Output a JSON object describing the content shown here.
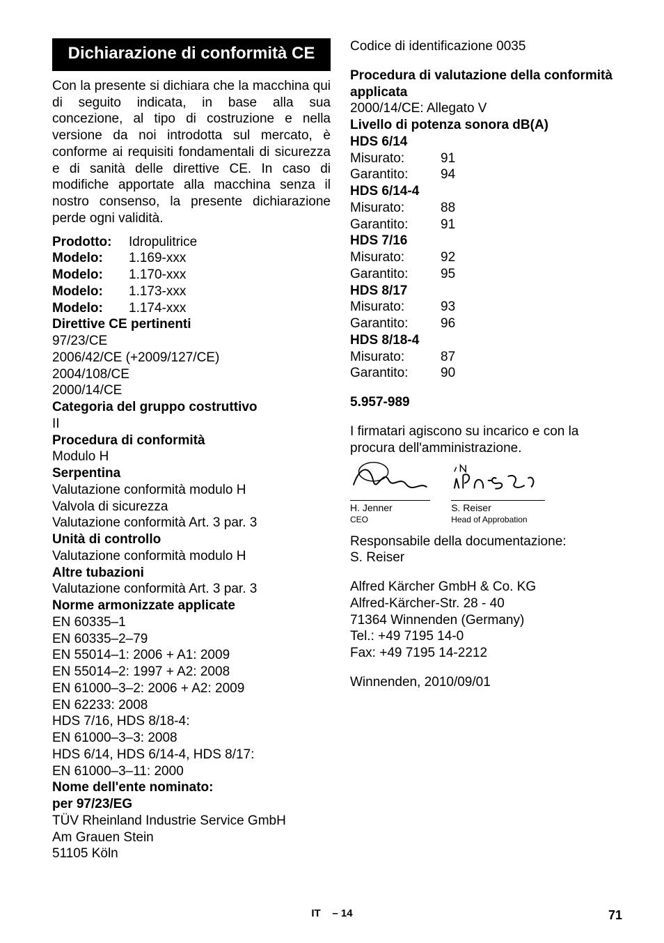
{
  "titleBar": "Dichiarazione di conformità CE",
  "introPara": "Con la presente si dichiara che la macchina qui di seguito indicata, in base alla sua concezione, al tipo di costruzione e nella versione da noi introdotta sul mercato, è conforme ai requisiti fondamentali di sicurezza e di sanità delle direttive CE. In caso di modifiche apportate alla macchina senza il nostro consenso, la presente dichiarazione perde ogni validità.",
  "product": {
    "label": "Prodotto:",
    "value": "Idropulitrice"
  },
  "models": [
    {
      "label": "Modelo:",
      "value": "1.169-xxx"
    },
    {
      "label": "Modelo:",
      "value": "1.170-xxx"
    },
    {
      "label": "Modelo:",
      "value": "1.173-xxx"
    },
    {
      "label": "Modelo:",
      "value": "1.174-xxx"
    }
  ],
  "directivesHeading": "Direttive CE pertinenti",
  "directives": [
    "97/23/CE",
    "2006/42/CE (+2009/127/CE)",
    "2004/108/CE",
    "2000/14/CE"
  ],
  "categoryHeading": "Categoria del gruppo costruttivo",
  "categoryValue": "II",
  "procedureHeading": "Procedura di conformità",
  "procedureValue": "Modulo H",
  "coilHeading": "Serpentina",
  "coilLines": [
    "Valutazione conformità modulo H",
    "Valvola di sicurezza",
    "Valutazione conformità Art. 3 par. 3"
  ],
  "controlHeading": "Unità di controllo",
  "controlValue": "Valutazione conformità modulo H",
  "otherPipesHeading": "Altre tubazioni",
  "otherPipesValue": "Valutazione conformità Art. 3 par. 3",
  "normsHeading": "Norme armonizzate applicate",
  "norms": [
    "EN 60335–1",
    "EN 60335–2–79",
    "EN 55014–1: 2006 + A1: 2009",
    "EN 55014–2: 1997 + A2: 2008",
    "EN 61000–3–2: 2006 + A2: 2009",
    "EN 62233: 2008",
    "HDS 7/16, HDS 8/18-4:",
    "EN 61000–3–3: 2008",
    "HDS 6/14, HDS 6/14-4, HDS 8/17:",
    "EN 61000–3–11: 2000"
  ],
  "bodyNameHeading": "Nome dell'ente nominato:",
  "bodySubHeading": "per 97/23/EG",
  "bodyLines": [
    "TÜV Rheinland Industrie Service GmbH",
    "Am Grauen Stein",
    "51105 Köln"
  ],
  "codeLine": "Codice di identificazione 0035",
  "evalHeading": "Procedura di valutazione della conformità applicata",
  "evalValue": "2000/14/CE: Allegato V",
  "soundHeading": "Livello di potenza sonora dB(A)",
  "soundSections": [
    {
      "title": "HDS 6/14",
      "rows": [
        {
          "k": "Misurato:",
          "v": "91"
        },
        {
          "k": "Garantito:",
          "v": "94"
        }
      ]
    },
    {
      "title": "HDS 6/14-4",
      "rows": [
        {
          "k": "Misurato:",
          "v": "88"
        },
        {
          "k": "Garantito:",
          "v": "91"
        }
      ]
    },
    {
      "title": "HDS 7/16",
      "rows": [
        {
          "k": "Misurato:",
          "v": "92"
        },
        {
          "k": "Garantito:",
          "v": "95"
        }
      ]
    },
    {
      "title": "HDS 8/17",
      "rows": [
        {
          "k": "Misurato:",
          "v": "93"
        },
        {
          "k": "Garantito:",
          "v": "96"
        }
      ]
    },
    {
      "title": "HDS 8/18-4",
      "rows": [
        {
          "k": "Misurato:",
          "v": "87"
        },
        {
          "k": "Garantito:",
          "v": "90"
        }
      ]
    }
  ],
  "docNumber": "5.957-989",
  "signatoriesPara": "I firmatari agiscono su incarico e con la procura dell'amministrazione.",
  "sig1": {
    "name": "H. Jenner",
    "role": "CEO"
  },
  "sig2": {
    "name": "S. Reiser",
    "role": "Head of Approbation"
  },
  "docResp1": "Responsabile della documentazione:",
  "docResp2": "S. Reiser",
  "addr": [
    "Alfred Kärcher GmbH & Co. KG",
    "Alfred-Kärcher-Str. 28 - 40",
    "71364 Winnenden (Germany)",
    "Tel.: +49 7195 14-0",
    "Fax: +49 7195 14-2212"
  ],
  "placeDate": "Winnenden, 2010/09/01",
  "footerLang": "IT",
  "footerSection": "– 14",
  "footerPage": "71"
}
